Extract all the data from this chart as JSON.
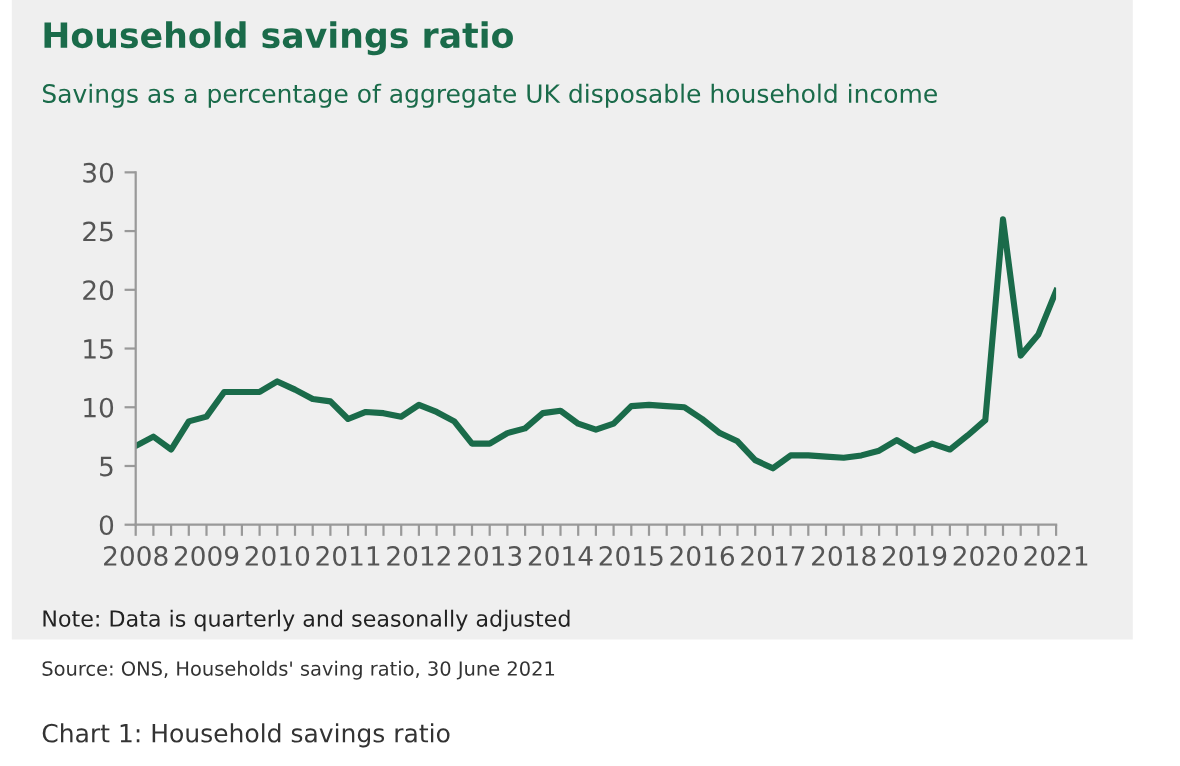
{
  "chart_data": {
    "type": "line",
    "title": "Household savings ratio",
    "subtitle": "Savings as a percentage of aggregate UK disposable household income",
    "x": [
      2008,
      2008.25,
      2008.5,
      2008.75,
      2009,
      2009.25,
      2009.5,
      2009.75,
      2010,
      2010.25,
      2010.5,
      2010.75,
      2011,
      2011.25,
      2011.5,
      2011.75,
      2012,
      2012.25,
      2012.5,
      2012.75,
      2013,
      2013.25,
      2013.5,
      2013.75,
      2014,
      2014.25,
      2014.5,
      2014.75,
      2015,
      2015.25,
      2015.5,
      2015.75,
      2016,
      2016.25,
      2016.5,
      2016.75,
      2017,
      2017.25,
      2017.5,
      2017.75,
      2018,
      2018.25,
      2018.5,
      2018.75,
      2019,
      2019.25,
      2019.5,
      2019.75,
      2020,
      2020.25,
      2020.5,
      2020.75,
      2021
    ],
    "series": [
      {
        "color": "#1a6b4a",
        "values": [
          6.7,
          7.5,
          6.4,
          8.8,
          9.2,
          11.3,
          11.3,
          11.3,
          12.2,
          11.5,
          10.7,
          10.5,
          9.0,
          9.6,
          9.5,
          9.2,
          10.2,
          9.6,
          8.8,
          6.9,
          6.9,
          7.8,
          8.2,
          9.5,
          9.7,
          8.6,
          8.1,
          8.6,
          10.1,
          10.2,
          10.1,
          10.0,
          9.0,
          7.8,
          7.1,
          5.5,
          4.8,
          5.9,
          5.9,
          5.8,
          5.7,
          5.9,
          6.3,
          7.2,
          6.3,
          6.9,
          6.4,
          7.6,
          8.9,
          26.0,
          14.4,
          16.2,
          19.9
        ]
      }
    ],
    "xlim": [
      2008,
      2021
    ],
    "ylim": [
      0,
      30
    ],
    "yticks": [
      0,
      5,
      10,
      15,
      20,
      25,
      30
    ],
    "xticks": [
      2008,
      {
        "value": 2008.25,
        "label": null
      },
      {
        "value": 2008.5,
        "label": null
      },
      {
        "value": 2008.75,
        "label": null
      },
      2009,
      {
        "value": 2009.25,
        "label": null
      },
      {
        "value": 2009.5,
        "label": null
      },
      {
        "value": 2009.75,
        "label": null
      },
      2010,
      {
        "value": 2010.25,
        "label": null
      },
      {
        "value": 2010.5,
        "label": null
      },
      {
        "value": 2010.75,
        "label": null
      },
      2011,
      {
        "value": 2011.25,
        "label": null
      },
      {
        "value": 2011.5,
        "label": null
      },
      {
        "value": 2011.75,
        "label": null
      },
      2012,
      {
        "value": 2012.25,
        "label": null
      },
      {
        "value": 2012.5,
        "label": null
      },
      {
        "value": 2012.75,
        "label": null
      },
      2013,
      {
        "value": 2013.25,
        "label": null
      },
      {
        "value": 2013.5,
        "label": null
      },
      {
        "value": 2013.75,
        "label": null
      },
      2014,
      {
        "value": 2014.25,
        "label": null
      },
      {
        "value": 2014.5,
        "label": null
      },
      {
        "value": 2014.75,
        "label": null
      },
      2015,
      {
        "value": 2015.25,
        "label": null
      },
      {
        "value": 2015.5,
        "label": null
      },
      {
        "value": 2015.75,
        "label": null
      },
      2016,
      {
        "value": 2016.25,
        "label": null
      },
      {
        "value": 2016.5,
        "label": null
      },
      {
        "value": 2016.75,
        "label": null
      },
      2017,
      {
        "value": 2017.25,
        "label": null
      },
      {
        "value": 2017.5,
        "label": null
      },
      {
        "value": 2017.75,
        "label": null
      },
      2018,
      {
        "value": 2018.25,
        "label": null
      },
      {
        "value": 2018.5,
        "label": null
      },
      {
        "value": 2018.75,
        "label": null
      },
      2019,
      {
        "value": 2019.25,
        "label": null
      },
      {
        "value": 2019.5,
        "label": null
      },
      {
        "value": 2019.75,
        "label": null
      },
      2020,
      {
        "value": 2020.25,
        "label": null
      },
      {
        "value": 2020.5,
        "label": null
      },
      {
        "value": 2020.75,
        "label": null
      },
      2021
    ],
    "grid": false,
    "legend": false,
    "marker": "none",
    "line_style": "solid",
    "annotations": [
      "Note: Data is quarterly and seasonally adjusted",
      "Source: ONS, Households' saving ratio, 30 June 2021",
      "Chart 1: Household savings ratio"
    ]
  }
}
